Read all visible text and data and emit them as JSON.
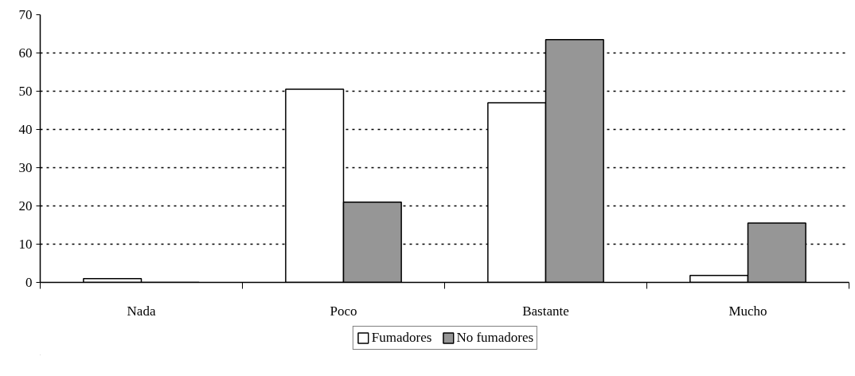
{
  "chart_data": {
    "type": "bar",
    "categories": [
      "Nada",
      "Poco",
      "Bastante",
      "Mucho"
    ],
    "series": [
      {
        "name": "Fumadores",
        "color": "#ffffff",
        "values": [
          1,
          50.5,
          47,
          1.8
        ]
      },
      {
        "name": "No fumadores",
        "color": "#969696",
        "values": [
          0,
          21,
          63.5,
          15.5
        ]
      }
    ],
    "ylim": [
      0,
      70
    ],
    "yticks": [
      0,
      10,
      20,
      30,
      40,
      50,
      60,
      70
    ],
    "grid": "y",
    "legend": "bottom"
  }
}
